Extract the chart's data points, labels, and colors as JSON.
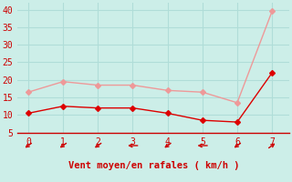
{
  "x": [
    0,
    1,
    2,
    3,
    4,
    5,
    6,
    7
  ],
  "y_dark": [
    10.5,
    12.5,
    12.0,
    12.0,
    10.5,
    8.5,
    8.0,
    22.0
  ],
  "y_light": [
    16.5,
    19.5,
    18.5,
    18.5,
    17.0,
    16.5,
    13.5,
    39.5
  ],
  "arrow_angles_deg": [
    225,
    225,
    225,
    180,
    225,
    180,
    225,
    45
  ],
  "xlim": [
    -0.3,
    7.5
  ],
  "ylim": [
    5,
    42
  ],
  "yticks": [
    5,
    10,
    15,
    20,
    25,
    30,
    35,
    40
  ],
  "xticks": [
    0,
    1,
    2,
    3,
    4,
    5,
    6,
    7
  ],
  "xlabel": "Vent moyen/en rafales ( km/h )",
  "bg_color": "#cceee8",
  "grid_color": "#b0ddd8",
  "line_dark_color": "#dd0000",
  "line_light_color": "#ee9999",
  "tick_color": "#cc0000",
  "xlabel_color": "#cc0000",
  "arrow_color": "#cc0000",
  "spine_color": "#cc0000",
  "marker_size": 3
}
